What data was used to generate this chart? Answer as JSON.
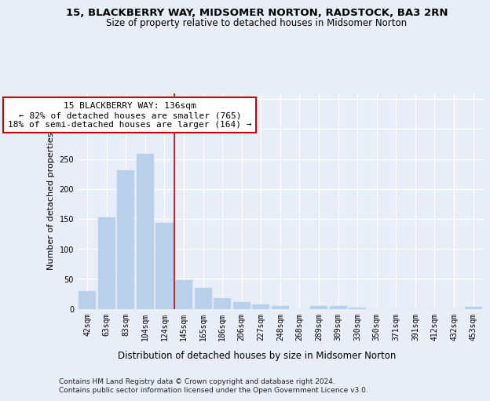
{
  "title": "15, BLACKBERRY WAY, MIDSOMER NORTON, RADSTOCK, BA3 2RN",
  "subtitle": "Size of property relative to detached houses in Midsomer Norton",
  "xlabel": "Distribution of detached houses by size in Midsomer Norton",
  "ylabel": "Number of detached properties",
  "categories": [
    "42sqm",
    "63sqm",
    "83sqm",
    "104sqm",
    "124sqm",
    "145sqm",
    "165sqm",
    "186sqm",
    "206sqm",
    "227sqm",
    "248sqm",
    "268sqm",
    "289sqm",
    "309sqm",
    "330sqm",
    "350sqm",
    "371sqm",
    "391sqm",
    "412sqm",
    "432sqm",
    "453sqm"
  ],
  "values": [
    30,
    153,
    231,
    259,
    143,
    48,
    35,
    18,
    11,
    7,
    5,
    0,
    4,
    4,
    2,
    0,
    0,
    0,
    0,
    0,
    3
  ],
  "bar_color": "#b8d0ea",
  "bar_edgecolor": "#b8d0ea",
  "vline_x": 4.5,
  "vline_color": "#cc0000",
  "annotation_text": "15 BLACKBERRY WAY: 136sqm\n← 82% of detached houses are smaller (765)\n18% of semi-detached houses are larger (164) →",
  "annotation_box_facecolor": "#ffffff",
  "annotation_box_edgecolor": "#cc0000",
  "ylim": [
    0,
    360
  ],
  "yticks": [
    0,
    50,
    100,
    150,
    200,
    250,
    300,
    350
  ],
  "background_color": "#e8eef8",
  "plot_background": "#e8eef8",
  "footer_text": "Contains HM Land Registry data © Crown copyright and database right 2024.\nContains public sector information licensed under the Open Government Licence v3.0.",
  "title_fontsize": 9.5,
  "subtitle_fontsize": 8.5,
  "xlabel_fontsize": 8.5,
  "ylabel_fontsize": 8.0,
  "tick_fontsize": 7.0,
  "annotation_fontsize": 8.0,
  "footer_fontsize": 6.5
}
